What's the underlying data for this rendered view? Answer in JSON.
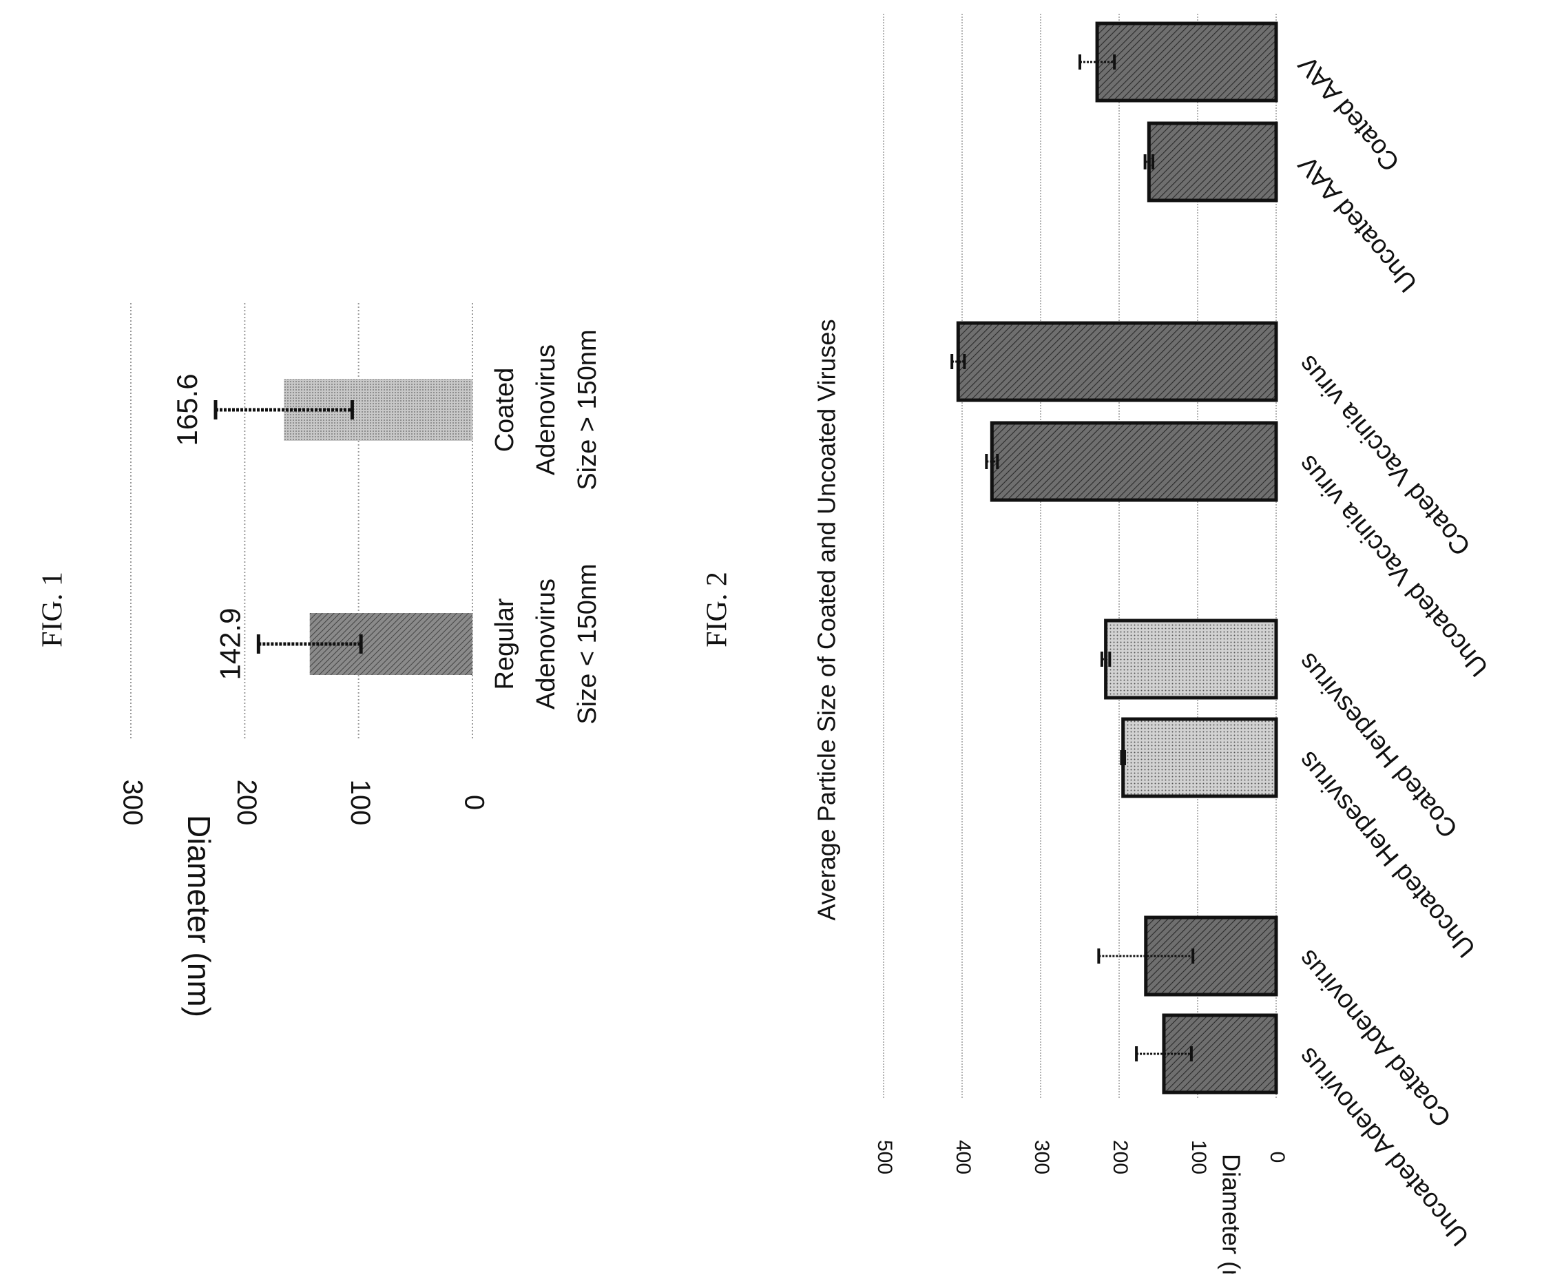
{
  "charts_rotation_note_free": true,
  "colors": {
    "gridline": "#9a9a9a",
    "bar_dark": "#6f6f6f",
    "bar_light": "#d2d2d2",
    "bar_fig1_regular": "#8a8a8a",
    "bar_fig1_coated": "#c8c8c8",
    "outline": "#111111",
    "error_bar": "#111111"
  },
  "chart_data": [
    {
      "figure_label": "FIG. 1",
      "type": "bar",
      "title": "",
      "xlabel": "",
      "ylabel": "Diameter (nm)",
      "ylim": [
        0,
        300
      ],
      "yticks": [
        "300",
        "200",
        "100",
        "0"
      ],
      "yticks_values": [
        300,
        200,
        100,
        0
      ],
      "grid": true,
      "categories": [
        [
          "Regular",
          "Adenovirus",
          "Size < 150nm"
        ],
        [
          "Coated",
          "Adenovirus",
          "Size > 150nm"
        ]
      ],
      "values": [
        142.9,
        165.6
      ],
      "data_labels": [
        "142.9",
        "165.6"
      ],
      "error": [
        45,
        60
      ]
    },
    {
      "figure_label": "FIG. 2",
      "type": "bar",
      "title": "Average Particle Size of Coated and Uncoated Viruses",
      "xlabel": "",
      "ylabel": "Diameter (nm)",
      "ylim": [
        0,
        500
      ],
      "yticks": [
        "500",
        "400",
        "300",
        "200",
        "100",
        "0"
      ],
      "yticks_values": [
        500,
        400,
        300,
        200,
        100,
        0
      ],
      "grid": true,
      "categories": [
        "Uncoated Adenovirus",
        "Coated Adenovirus",
        "Uncoated Herpesvirus",
        "Coated Herpesvirus",
        "Uncoated Vaccinia virus",
        "Coated Vaccinia virus",
        "Uncoated AAV",
        "Coated AAV"
      ],
      "values": [
        143,
        166,
        195,
        217,
        362,
        405,
        162,
        228
      ],
      "error": [
        35,
        60,
        2,
        5,
        7,
        8,
        5,
        22
      ]
    }
  ]
}
